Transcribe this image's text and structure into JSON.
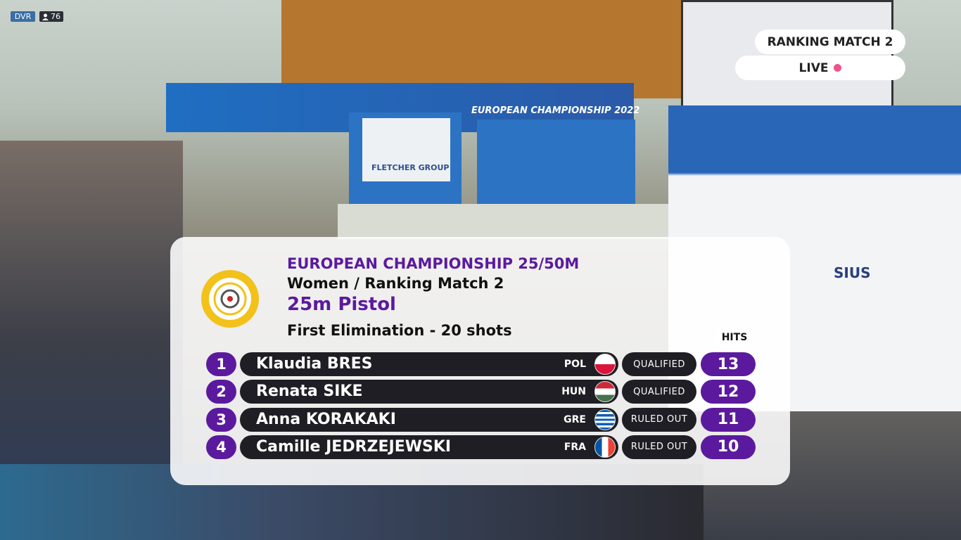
{
  "stream": {
    "badge": "DVR",
    "viewers": 76
  },
  "corner": {
    "event": "RANKING MATCH 2",
    "live": "LIVE"
  },
  "scene": {
    "banner": "EUROPEAN CHAMPIONSHIP 2022",
    "sponsor": "FLETCHER GROUP",
    "board": "SIUS"
  },
  "panel": {
    "title": "EUROPEAN CHAMPIONSHIP 25/50M",
    "subtitle": "Women / Ranking Match 2",
    "discipline": "25m Pistol",
    "stage": "First Elimination - 20 shots",
    "hits_header": "HITS",
    "rows": [
      {
        "rank": 1,
        "name": "Klaudia BRES",
        "country": "POL",
        "status": "QUALIFIED",
        "hits": 13
      },
      {
        "rank": 2,
        "name": "Renata SIKE",
        "country": "HUN",
        "status": "QUALIFIED",
        "hits": 12
      },
      {
        "rank": 3,
        "name": "Anna KORAKAKI",
        "country": "GRE",
        "status": "RULED OUT",
        "hits": 11
      },
      {
        "rank": 4,
        "name": "Camille JEDRZEJEWSKI",
        "country": "FRA",
        "status": "RULED OUT",
        "hits": 10
      }
    ]
  }
}
